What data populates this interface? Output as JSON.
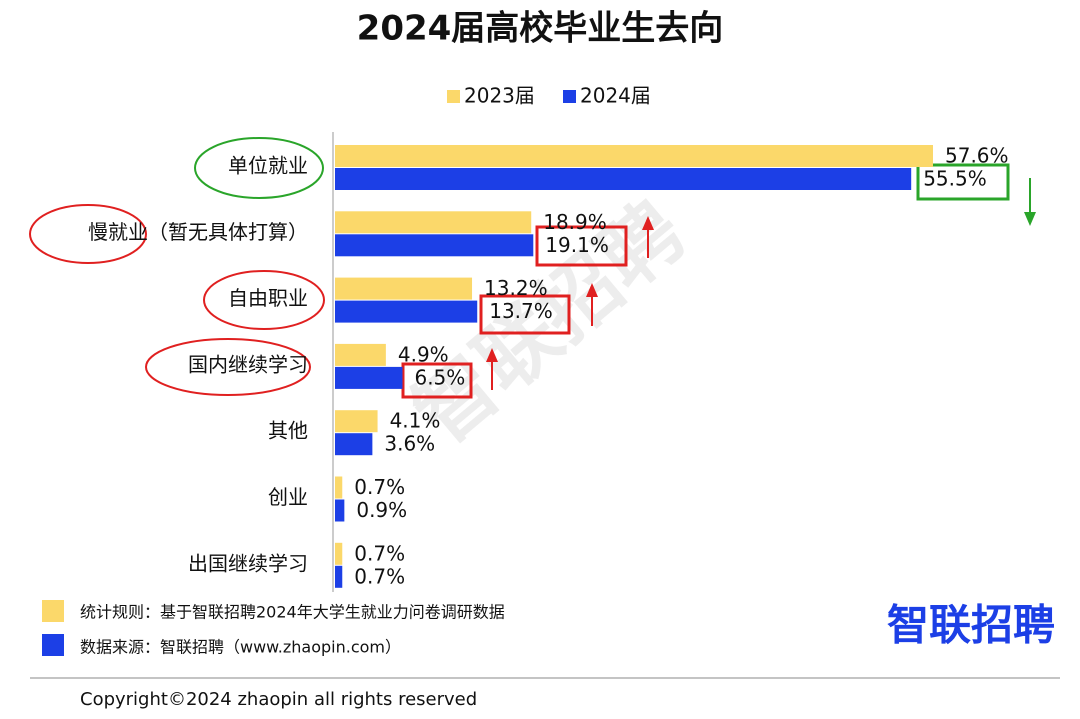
{
  "chart_data": {
    "type": "hbar",
    "title": "2024届高校毕业生去向",
    "categories": [
      "单位就业",
      "慢就业（暂无具体打算）",
      "自由职业",
      "国内继续学习",
      "其他",
      "创业",
      "出国继续学习"
    ],
    "series": [
      {
        "name": "2023届",
        "color": "#fbd86a",
        "values": [
          57.6,
          18.9,
          13.2,
          4.9,
          4.1,
          0.7,
          0.7
        ],
        "value_labels": [
          "57.6%",
          "18.9%",
          "13.2%",
          "4.9%",
          "4.1%",
          "0.7%",
          "0.7%"
        ]
      },
      {
        "name": "2024届",
        "color": "#1c3fe6",
        "values": [
          55.5,
          19.1,
          13.7,
          6.5,
          3.6,
          0.9,
          0.7
        ],
        "value_labels": [
          "55.5%",
          "19.1%",
          "13.7%",
          "6.5%",
          "3.6%",
          "0.9%",
          "0.7%"
        ]
      }
    ],
    "legend": "top",
    "notes": [
      "统计规则：基于智联招聘2024年大学生就业力问卷调研数据",
      "数据来源：智联招聘（www.zhaopin.com）"
    ],
    "logo": "智联招聘",
    "watermark": "智联招聘",
    "copyright": "Copyright©2024 zhaopin all rights reserved"
  }
}
